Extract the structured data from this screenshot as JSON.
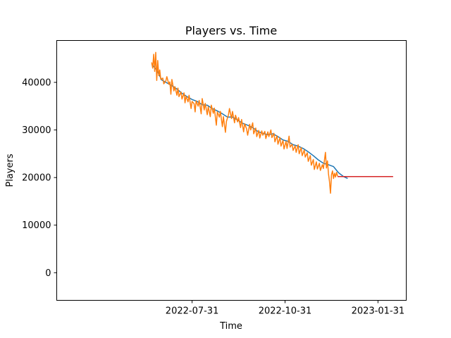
{
  "chart_data": {
    "type": "line",
    "title": "Players vs. Time",
    "xlabel": "Time",
    "ylabel": "Players",
    "x_ticks": [
      "2022-07-31",
      "2022-10-31",
      "2023-01-31"
    ],
    "y_ticks": [
      0,
      10000,
      20000,
      30000,
      40000
    ],
    "xlim": [
      "2022-03-19",
      "2023-02-28"
    ],
    "ylim": [
      -5800,
      48800
    ],
    "grid": false,
    "legend": "none",
    "series": [
      {
        "color": "#1f77b4",
        "points": [
          [
            "2022-06-21",
            43800
          ],
          [
            "2022-06-26",
            42600
          ],
          [
            "2022-07-01",
            40500
          ],
          [
            "2022-07-06",
            39900
          ],
          [
            "2022-07-11",
            39300
          ],
          [
            "2022-07-16",
            38600
          ],
          [
            "2022-07-21",
            37700
          ],
          [
            "2022-07-26",
            37000
          ],
          [
            "2022-07-31",
            36400
          ],
          [
            "2022-08-05",
            36000
          ],
          [
            "2022-08-10",
            35300
          ],
          [
            "2022-08-15",
            35200
          ],
          [
            "2022-08-20",
            34500
          ],
          [
            "2022-08-25",
            34000
          ],
          [
            "2022-08-30",
            33400
          ],
          [
            "2022-09-04",
            32700
          ],
          [
            "2022-09-09",
            32700
          ],
          [
            "2022-09-14",
            32100
          ],
          [
            "2022-09-19",
            31400
          ],
          [
            "2022-09-24",
            31000
          ],
          [
            "2022-09-29",
            30500
          ],
          [
            "2022-10-04",
            29700
          ],
          [
            "2022-10-09",
            29300
          ],
          [
            "2022-10-14",
            29000
          ],
          [
            "2022-10-19",
            29200
          ],
          [
            "2022-10-24",
            28600
          ],
          [
            "2022-10-29",
            27900
          ],
          [
            "2022-11-03",
            27600
          ],
          [
            "2022-11-08",
            26900
          ],
          [
            "2022-11-13",
            26600
          ],
          [
            "2022-11-18",
            26100
          ],
          [
            "2022-11-23",
            25400
          ],
          [
            "2022-11-28",
            24600
          ],
          [
            "2022-12-03",
            23700
          ],
          [
            "2022-12-08",
            23000
          ],
          [
            "2022-12-13",
            22700
          ],
          [
            "2022-12-18",
            22300
          ],
          [
            "2022-12-23",
            21000
          ],
          [
            "2022-12-28",
            20200
          ],
          [
            "2023-01-01",
            19800
          ]
        ]
      },
      {
        "color": "#ff7f0e",
        "points": [
          [
            "2022-06-21",
            44200
          ],
          [
            "2022-06-22",
            43000
          ],
          [
            "2022-06-23",
            45900
          ],
          [
            "2022-06-24",
            42300
          ],
          [
            "2022-06-25",
            46300
          ],
          [
            "2022-06-26",
            40400
          ],
          [
            "2022-06-27",
            44600
          ],
          [
            "2022-06-28",
            41400
          ],
          [
            "2022-06-29",
            42600
          ],
          [
            "2022-06-30",
            40600
          ],
          [
            "2022-07-02",
            40900
          ],
          [
            "2022-07-03",
            39700
          ],
          [
            "2022-07-05",
            40300
          ],
          [
            "2022-07-06",
            41200
          ],
          [
            "2022-07-08",
            39600
          ],
          [
            "2022-07-09",
            40100
          ],
          [
            "2022-07-10",
            37500
          ],
          [
            "2022-07-11",
            40600
          ],
          [
            "2022-07-13",
            38200
          ],
          [
            "2022-07-14",
            39100
          ],
          [
            "2022-07-16",
            37300
          ],
          [
            "2022-07-17",
            38800
          ],
          [
            "2022-07-18",
            37000
          ],
          [
            "2022-07-20",
            38000
          ],
          [
            "2022-07-21",
            36500
          ],
          [
            "2022-07-23",
            37800
          ],
          [
            "2022-07-24",
            35700
          ],
          [
            "2022-07-25",
            37100
          ],
          [
            "2022-07-27",
            35900
          ],
          [
            "2022-07-28",
            37300
          ],
          [
            "2022-07-30",
            34500
          ],
          [
            "2022-07-31",
            36000
          ],
          [
            "2022-08-02",
            35500
          ],
          [
            "2022-08-03",
            33800
          ],
          [
            "2022-08-04",
            36100
          ],
          [
            "2022-08-06",
            35000
          ],
          [
            "2022-08-07",
            36200
          ],
          [
            "2022-08-09",
            33400
          ],
          [
            "2022-08-10",
            36600
          ],
          [
            "2022-08-12",
            34200
          ],
          [
            "2022-08-13",
            35600
          ],
          [
            "2022-08-15",
            33200
          ],
          [
            "2022-08-16",
            34900
          ],
          [
            "2022-08-18",
            32800
          ],
          [
            "2022-08-19",
            35200
          ],
          [
            "2022-08-21",
            33500
          ],
          [
            "2022-08-22",
            34600
          ],
          [
            "2022-08-24",
            31000
          ],
          [
            "2022-08-25",
            33800
          ],
          [
            "2022-08-27",
            32700
          ],
          [
            "2022-08-28",
            33900
          ],
          [
            "2022-08-30",
            30700
          ],
          [
            "2022-08-31",
            32800
          ],
          [
            "2022-09-02",
            29500
          ],
          [
            "2022-09-03",
            31800
          ],
          [
            "2022-09-05",
            33200
          ],
          [
            "2022-09-06",
            34500
          ],
          [
            "2022-09-08",
            32400
          ],
          [
            "2022-09-09",
            33900
          ],
          [
            "2022-09-11",
            31500
          ],
          [
            "2022-09-12",
            33100
          ],
          [
            "2022-09-14",
            31700
          ],
          [
            "2022-09-15",
            32600
          ],
          [
            "2022-09-17",
            30500
          ],
          [
            "2022-09-18",
            32200
          ],
          [
            "2022-09-20",
            29600
          ],
          [
            "2022-09-21",
            31300
          ],
          [
            "2022-09-23",
            30200
          ],
          [
            "2022-09-24",
            28900
          ],
          [
            "2022-09-26",
            31200
          ],
          [
            "2022-09-27",
            30000
          ],
          [
            "2022-09-29",
            31500
          ],
          [
            "2022-09-30",
            29200
          ],
          [
            "2022-10-02",
            30400
          ],
          [
            "2022-10-03",
            28600
          ],
          [
            "2022-10-05",
            29900
          ],
          [
            "2022-10-06",
            28300
          ],
          [
            "2022-10-08",
            29800
          ],
          [
            "2022-10-09",
            28900
          ],
          [
            "2022-10-11",
            29700
          ],
          [
            "2022-10-12",
            28200
          ],
          [
            "2022-10-14",
            29600
          ],
          [
            "2022-10-15",
            28600
          ],
          [
            "2022-10-17",
            30000
          ],
          [
            "2022-10-18",
            28400
          ],
          [
            "2022-10-20",
            29300
          ],
          [
            "2022-10-21",
            27500
          ],
          [
            "2022-10-23",
            28800
          ],
          [
            "2022-10-24",
            27000
          ],
          [
            "2022-10-26",
            28400
          ],
          [
            "2022-10-27",
            26600
          ],
          [
            "2022-10-29",
            27800
          ],
          [
            "2022-10-30",
            26000
          ],
          [
            "2022-11-01",
            27600
          ],
          [
            "2022-11-02",
            26100
          ],
          [
            "2022-11-04",
            28700
          ],
          [
            "2022-11-05",
            26400
          ],
          [
            "2022-11-07",
            27000
          ],
          [
            "2022-11-08",
            25700
          ],
          [
            "2022-11-10",
            26700
          ],
          [
            "2022-11-11",
            25300
          ],
          [
            "2022-11-13",
            26900
          ],
          [
            "2022-11-14",
            25000
          ],
          [
            "2022-11-16",
            26300
          ],
          [
            "2022-11-17",
            24600
          ],
          [
            "2022-11-19",
            25800
          ],
          [
            "2022-11-20",
            24300
          ],
          [
            "2022-11-22",
            25200
          ],
          [
            "2022-11-23",
            23400
          ],
          [
            "2022-11-25",
            24600
          ],
          [
            "2022-11-26",
            22600
          ],
          [
            "2022-11-28",
            23800
          ],
          [
            "2022-11-29",
            21700
          ],
          [
            "2022-12-01",
            23300
          ],
          [
            "2022-12-02",
            21800
          ],
          [
            "2022-12-04",
            23000
          ],
          [
            "2022-12-05",
            21500
          ],
          [
            "2022-12-07",
            22700
          ],
          [
            "2022-12-08",
            21900
          ],
          [
            "2022-12-10",
            25300
          ],
          [
            "2022-12-11",
            22000
          ],
          [
            "2022-12-12",
            23500
          ],
          [
            "2022-12-13",
            20800
          ],
          [
            "2022-12-14",
            19200
          ],
          [
            "2022-12-15",
            16700
          ],
          [
            "2022-12-16",
            20600
          ],
          [
            "2022-12-17",
            21400
          ],
          [
            "2022-12-18",
            19800
          ],
          [
            "2022-12-19",
            20900
          ],
          [
            "2022-12-20",
            20100
          ],
          [
            "2022-12-21",
            21100
          ],
          [
            "2022-12-22",
            20300
          ]
        ]
      },
      {
        "color": "#d62728",
        "points": [
          [
            "2022-12-22",
            20200
          ],
          [
            "2023-02-15",
            20200
          ]
        ]
      }
    ]
  }
}
